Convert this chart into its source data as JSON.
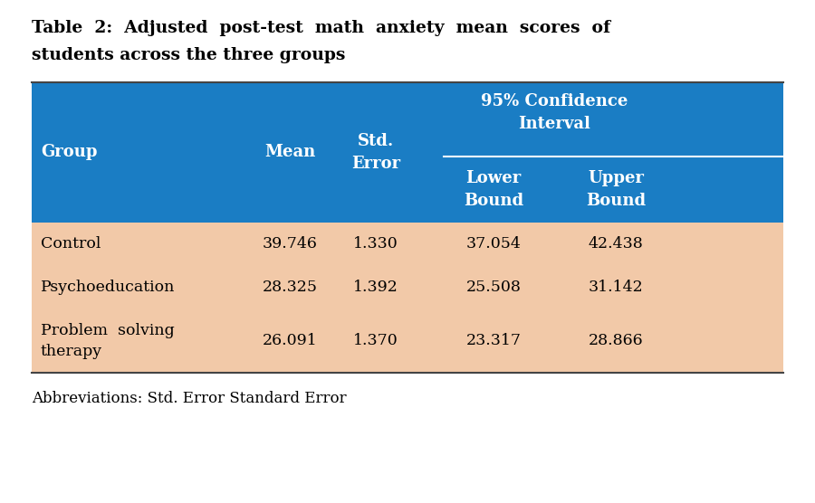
{
  "title_line1": "Table  2:  Adjusted  post-test  math  anxiety  mean  scores  of",
  "title_line2": "students across the three groups",
  "header_bg_color": "#1A7DC4",
  "header_text_color": "#FFFFFF",
  "data_bg_color": "#F2C9A8",
  "data_text_color": "#000000",
  "title_text_color": "#000000",
  "footer_text": "Abbreviations: Std. Error Standard Error",
  "rows": [
    [
      "Control",
      "39.746",
      "1.330",
      "37.054",
      "42.438"
    ],
    [
      "Psychoeducation",
      "28.325",
      "1.392",
      "25.508",
      "31.142"
    ],
    [
      "Problem  solving\ntherapy",
      "26.091",
      "1.370",
      "23.317",
      "28.866"
    ]
  ],
  "figsize": [
    9.0,
    5.56
  ],
  "dpi": 100
}
